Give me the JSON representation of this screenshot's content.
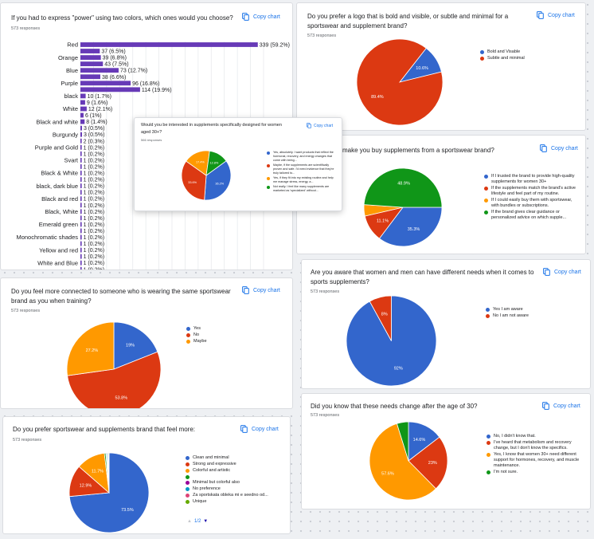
{
  "copy_label": "Copy chart",
  "colors": {
    "blue": "#3366cc",
    "red": "#dc3912",
    "orange": "#ff9900",
    "green": "#109618",
    "purple": "#990099",
    "teal": "#0099c6",
    "pink": "#dd4477",
    "lime": "#66aa00",
    "bar": "#673ab7",
    "link": "#1a73e8"
  },
  "cards": {
    "power": {
      "title": "If you had to express \"power\" using two colors, which ones would you choose?",
      "responses": "573 responses"
    },
    "logo": {
      "title": "Do you prefer a logo that is bold and visible, or subtle and minimal for a sportswear and supplement brand?",
      "responses": "573 responses"
    },
    "women30": {
      "title": "Would you be interested in supplements specifically designed for women aged 30+?",
      "responses": "566 responses"
    },
    "buy": {
      "title": "make you buy supplements from a sportswear brand?",
      "responses": ""
    },
    "aware": {
      "title": "Are you aware that women and men can have different needs when it comes to sports supplements?",
      "responses": "573 responses"
    },
    "connected": {
      "title": "Do you feel more connected to someone who is wearing the same sportswear brand as you when training?",
      "responses": "573 responses"
    },
    "after30": {
      "title": "Did you know that these needs change after the age of 30?",
      "responses": "573 responses"
    },
    "feel": {
      "title": "Do you prefer sportswear and supplements brand that feel more:",
      "responses": "573 responses",
      "pager": "1/2"
    }
  },
  "chart_data": [
    {
      "id": "power",
      "type": "bar",
      "orientation": "horizontal",
      "categories": [
        "Red",
        "",
        "Orange",
        "",
        "Blue",
        "",
        "Purple",
        "",
        "black",
        "",
        "White",
        "",
        "Black and white",
        "",
        "Burgundy",
        "",
        "Purple and Gold",
        "",
        "Svart",
        "",
        "Black & White",
        "",
        "black, dark blue",
        "",
        "Black and red",
        "",
        "Black, White",
        "",
        "Emerald green",
        "",
        "Monochromatic shades",
        "",
        "Yellow and red",
        "",
        "White and Blue",
        ""
      ],
      "values": [
        339,
        37,
        39,
        43,
        73,
        38,
        96,
        114,
        10,
        9,
        12,
        6,
        8,
        3,
        3,
        2,
        1,
        1,
        1,
        1,
        1,
        1,
        1,
        1,
        1,
        1,
        1,
        1,
        1,
        1,
        1,
        1,
        1,
        1,
        1,
        1
      ],
      "value_labels": [
        "339 (59.2%)",
        "37 (6.5%)",
        "39 (6.8%)",
        "43 (7.5%)",
        "73 (12.7%)",
        "38 (6.6%)",
        "96 (16.8%)",
        "114 (19.9%)",
        "10 (1.7%)",
        "9 (1.6%)",
        "12 (2.1%)",
        "6 (1%)",
        "8 (1.4%)",
        "3 (0.5%)",
        "3 (0.5%)",
        "2 (0.3%)",
        "1 (0.2%)",
        "1 (0.2%)",
        "1 (0.2%)",
        "1 (0.2%)",
        "1 (0.2%)",
        "1 (0.2%)",
        "1 (0.2%)",
        "1 (0.2%)",
        "1 (0.2%)",
        "1 (0.2%)",
        "1 (0.2%)",
        "1 (0.2%)",
        "1 (0.2%)",
        "1 (0.2%)",
        "1 (0.2%)",
        "1 (0.2%)",
        "1 (0.2%)",
        "1 (0.2%)",
        "1 (0.2%)",
        "1 (0.2%)"
      ],
      "xlim": [
        0,
        350
      ],
      "grid": true
    },
    {
      "id": "logo",
      "type": "pie",
      "labels": [
        "Bold and Visable",
        "Subtle and minimal"
      ],
      "values": [
        10.6,
        89.4
      ],
      "value_labels": [
        "10.6%",
        "89.4%"
      ],
      "colors": [
        "blue",
        "red"
      ],
      "legend": "right"
    },
    {
      "id": "women30",
      "type": "pie",
      "labels": [
        "Yes, absolutely. I want products that reflect the hormonal, recovery, and energy changes that come with being...",
        "Maybe, if the supplements are scientifically proven and safe. I'd need evidence that they're truly tailored to...",
        "Yes, if they fit into my existing routine and help me manage stress, energy, a...",
        "Not really. I feel like many supplements are marketed as 'specialized' without..."
      ],
      "values": [
        36.2,
        33.6,
        17.4,
        12.8
      ],
      "value_labels": [
        "36.2%",
        "33.6%",
        "17.4%",
        "12.8%"
      ],
      "colors": [
        "blue",
        "red",
        "orange",
        "green"
      ],
      "legend": "right"
    },
    {
      "id": "buy",
      "type": "pie",
      "labels": [
        "If I trusted the brand to provide high-quality supplements for women 30+",
        "If the supplements match the brand's active lifestyle and feel part of my routine.",
        "If I could easily buy them with sportswear, with bundles or subscriptions.",
        "If the brand gives clear guidance or personalized advice on which supple..."
      ],
      "values": [
        35.3,
        11.1,
        4.7,
        48.9
      ],
      "value_labels": [
        "35.3%",
        "11.1%",
        "",
        "48.9%"
      ],
      "colors": [
        "blue",
        "red",
        "orange",
        "green"
      ],
      "legend": "right"
    },
    {
      "id": "aware",
      "type": "pie",
      "labels": [
        "Yes I am aware",
        "No I am not aware"
      ],
      "values": [
        92,
        8
      ],
      "value_labels": [
        "92%",
        "8%"
      ],
      "colors": [
        "blue",
        "red"
      ],
      "legend": "right"
    },
    {
      "id": "connected",
      "type": "pie",
      "labels": [
        "Yes",
        "No",
        "Maybe"
      ],
      "values": [
        19,
        53.8,
        27.2
      ],
      "value_labels": [
        "19%",
        "53.8%",
        "27.2%"
      ],
      "colors": [
        "blue",
        "red",
        "orange"
      ],
      "legend": "right"
    },
    {
      "id": "after30",
      "type": "pie",
      "labels": [
        "No, I didn't know that.",
        "I've heard that metabolism and recovery change, but I don't know the specifics.",
        "Yes, I know that women 30+ need different support for hormones, recovery, and muscle maintenance.",
        "I'm not sure."
      ],
      "values": [
        14.6,
        23,
        57.6,
        4.8
      ],
      "value_labels": [
        "14.6%",
        "23%",
        "57.6%",
        ""
      ],
      "colors": [
        "blue",
        "red",
        "orange",
        "green"
      ],
      "legend": "right"
    },
    {
      "id": "feel",
      "type": "pie",
      "labels": [
        "Clean and minimal",
        "Strong and expressive",
        "Colorful and artistic",
        "",
        "Minimal but colorful also",
        "No preference",
        "Za sportskata obleka mi e seedno od...",
        "Unique"
      ],
      "values": [
        73.5,
        12.9,
        11.7,
        0.6,
        0.3,
        0.4,
        0.3,
        0.3
      ],
      "value_labels": [
        "73.5%",
        "12.9%",
        "11.7%",
        "",
        "",
        "",
        "",
        ""
      ],
      "colors": [
        "blue",
        "red",
        "orange",
        "green",
        "purple",
        "teal",
        "pink",
        "lime"
      ],
      "legend": "right"
    }
  ]
}
